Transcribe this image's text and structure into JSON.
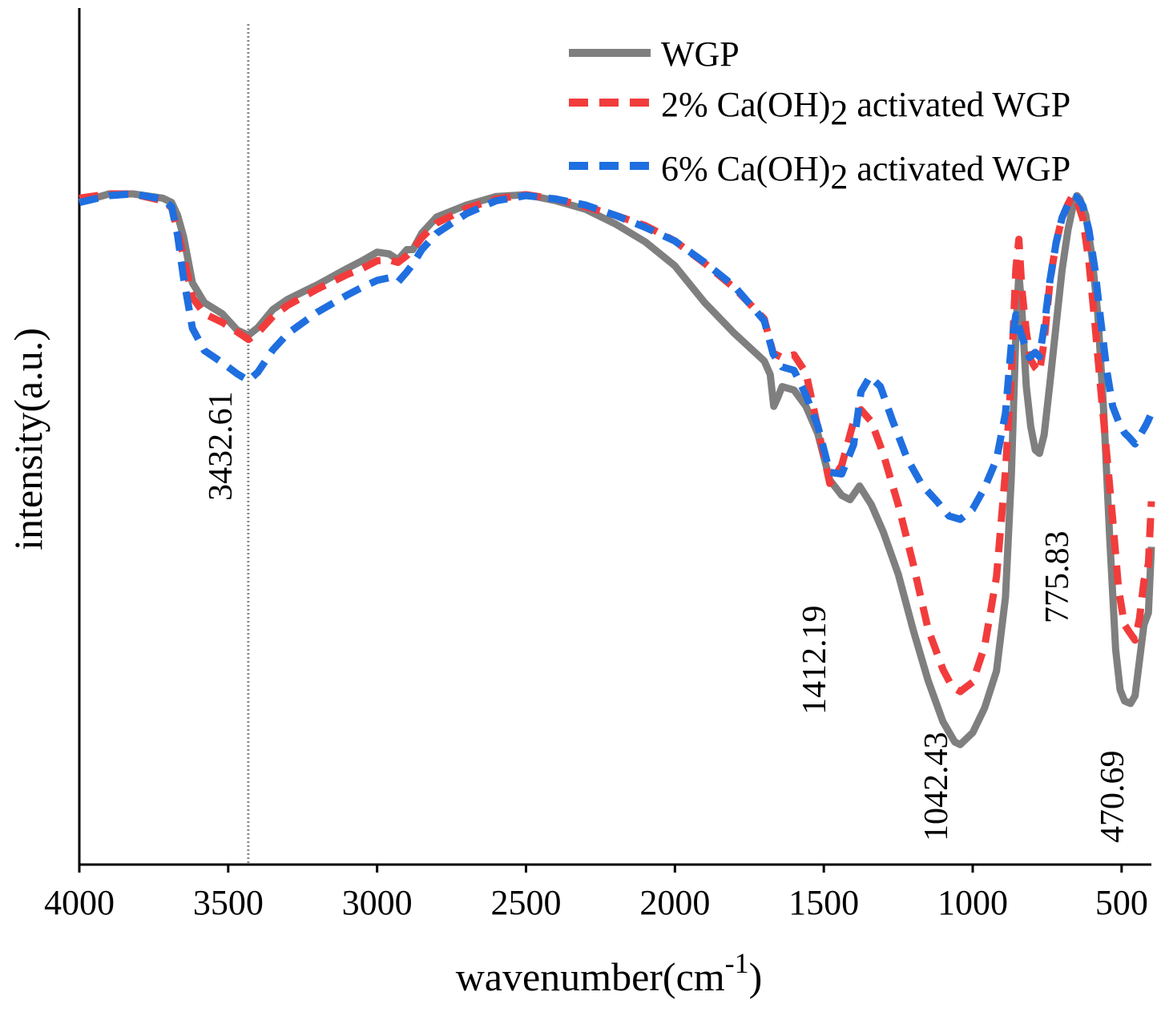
{
  "chart_data": {
    "type": "line",
    "title": "",
    "xlabel": "wavenumber(cm",
    "xlabel_sup": "-1",
    "xlabel_close": ")",
    "ylabel": "intensity(a.u.)",
    "xlim": [
      4000,
      400
    ],
    "x_reversed": true,
    "ylim": [
      0,
      100
    ],
    "grid": false,
    "legend_position": "top-right",
    "x_ticks": [
      {
        "value": 4000,
        "label": "4000"
      },
      {
        "value": 3500,
        "label": "3500"
      },
      {
        "value": 3000,
        "label": "3000"
      },
      {
        "value": 2500,
        "label": "2500"
      },
      {
        "value": 2000,
        "label": "2000"
      },
      {
        "value": 1500,
        "label": "1500"
      },
      {
        "value": 1000,
        "label": "1000"
      },
      {
        "value": 500,
        "label": "500"
      }
    ],
    "reference_line": {
      "x": 3432.61,
      "style": "dotted",
      "color": "#888888"
    },
    "series": [
      {
        "name": "WGP",
        "legend_label": "WGP",
        "legend_parts": [
          "WGP"
        ],
        "color": "#7f7f7f",
        "dash": "solid",
        "points": [
          [
            4000,
            77.3
          ],
          [
            3900,
            78.3
          ],
          [
            3820,
            78.3
          ],
          [
            3720,
            77.8
          ],
          [
            3690,
            77.3
          ],
          [
            3670,
            75.8
          ],
          [
            3650,
            73.3
          ],
          [
            3620,
            67.9
          ],
          [
            3580,
            65.6
          ],
          [
            3520,
            64.3
          ],
          [
            3470,
            62.4
          ],
          [
            3432,
            61.8
          ],
          [
            3400,
            62.7
          ],
          [
            3350,
            64.8
          ],
          [
            3300,
            66.0
          ],
          [
            3200,
            67.7
          ],
          [
            3100,
            69.6
          ],
          [
            3050,
            70.5
          ],
          [
            3000,
            71.5
          ],
          [
            2960,
            71.3
          ],
          [
            2930,
            70.6
          ],
          [
            2900,
            71.8
          ],
          [
            2880,
            71.8
          ],
          [
            2850,
            73.7
          ],
          [
            2800,
            75.6
          ],
          [
            2700,
            77.0
          ],
          [
            2600,
            78.0
          ],
          [
            2500,
            78.2
          ],
          [
            2400,
            77.5
          ],
          [
            2300,
            76.5
          ],
          [
            2200,
            74.8
          ],
          [
            2100,
            72.7
          ],
          [
            2000,
            69.9
          ],
          [
            1900,
            65.6
          ],
          [
            1800,
            62.0
          ],
          [
            1700,
            58.8
          ],
          [
            1680,
            57.2
          ],
          [
            1668,
            53.5
          ],
          [
            1655,
            54.5
          ],
          [
            1640,
            55.8
          ],
          [
            1600,
            55.4
          ],
          [
            1560,
            53.5
          ],
          [
            1520,
            50.3
          ],
          [
            1480,
            44.9
          ],
          [
            1440,
            43.1
          ],
          [
            1412,
            42.6
          ],
          [
            1380,
            44.2
          ],
          [
            1340,
            42.0
          ],
          [
            1300,
            38.8
          ],
          [
            1250,
            33.9
          ],
          [
            1200,
            27.4
          ],
          [
            1150,
            21.5
          ],
          [
            1100,
            16.7
          ],
          [
            1060,
            14.3
          ],
          [
            1042,
            14.0
          ],
          [
            1000,
            15.4
          ],
          [
            960,
            18.3
          ],
          [
            920,
            22.6
          ],
          [
            890,
            31.2
          ],
          [
            870,
            45.6
          ],
          [
            855,
            62.1
          ],
          [
            845,
            69.0
          ],
          [
            835,
            64.8
          ],
          [
            820,
            55.8
          ],
          [
            805,
            51.1
          ],
          [
            790,
            48.4
          ],
          [
            776,
            48.0
          ],
          [
            760,
            50.2
          ],
          [
            740,
            56.4
          ],
          [
            720,
            63.0
          ],
          [
            700,
            69.4
          ],
          [
            680,
            74.1
          ],
          [
            660,
            77.4
          ],
          [
            650,
            78.1
          ],
          [
            640,
            77.7
          ],
          [
            620,
            75.8
          ],
          [
            600,
            71.1
          ],
          [
            580,
            64.3
          ],
          [
            560,
            52.9
          ],
          [
            540,
            38.1
          ],
          [
            520,
            25.1
          ],
          [
            505,
            20.4
          ],
          [
            490,
            19.1
          ],
          [
            470,
            18.8
          ],
          [
            455,
            19.7
          ],
          [
            440,
            23.8
          ],
          [
            425,
            28.0
          ],
          [
            410,
            29.4
          ],
          [
            400,
            37.1
          ]
        ]
      },
      {
        "name": "2% Ca(OH)2 activated WGP",
        "legend_label": "2% Ca(OH)2 activated WGP",
        "legend_parts": [
          "2% Ca(OH)",
          "2",
          " activated WGP"
        ],
        "color": "#f23c3c",
        "dash": "24,14",
        "points": [
          [
            4000,
            77.8
          ],
          [
            3900,
            78.3
          ],
          [
            3820,
            78.3
          ],
          [
            3720,
            77.5
          ],
          [
            3690,
            76.7
          ],
          [
            3670,
            74.0
          ],
          [
            3650,
            71.0
          ],
          [
            3620,
            66.2
          ],
          [
            3580,
            64.3
          ],
          [
            3520,
            63.3
          ],
          [
            3470,
            62.2
          ],
          [
            3432,
            61.3
          ],
          [
            3400,
            62.1
          ],
          [
            3350,
            64.0
          ],
          [
            3300,
            65.3
          ],
          [
            3200,
            67.2
          ],
          [
            3100,
            68.9
          ],
          [
            3050,
            69.6
          ],
          [
            3000,
            70.5
          ],
          [
            2960,
            70.6
          ],
          [
            2930,
            70.3
          ],
          [
            2900,
            71.1
          ],
          [
            2880,
            71.8
          ],
          [
            2850,
            73.2
          ],
          [
            2800,
            74.9
          ],
          [
            2700,
            76.6
          ],
          [
            2600,
            77.7
          ],
          [
            2500,
            78.2
          ],
          [
            2400,
            77.7
          ],
          [
            2300,
            76.8
          ],
          [
            2200,
            75.8
          ],
          [
            2100,
            74.6
          ],
          [
            2000,
            72.8
          ],
          [
            1900,
            70.2
          ],
          [
            1800,
            67.3
          ],
          [
            1700,
            63.7
          ],
          [
            1670,
            59.7
          ],
          [
            1640,
            59.2
          ],
          [
            1600,
            59.5
          ],
          [
            1560,
            57.4
          ],
          [
            1520,
            51.0
          ],
          [
            1480,
            44.5
          ],
          [
            1440,
            46.6
          ],
          [
            1400,
            51.7
          ],
          [
            1375,
            53.1
          ],
          [
            1340,
            51.7
          ],
          [
            1300,
            47.9
          ],
          [
            1250,
            42.0
          ],
          [
            1200,
            35.1
          ],
          [
            1150,
            27.5
          ],
          [
            1100,
            22.8
          ],
          [
            1070,
            20.8
          ],
          [
            1042,
            20.2
          ],
          [
            1000,
            21.3
          ],
          [
            960,
            25.5
          ],
          [
            920,
            33.6
          ],
          [
            890,
            45.9
          ],
          [
            870,
            57.4
          ],
          [
            855,
            69.6
          ],
          [
            845,
            73.0
          ],
          [
            835,
            67.2
          ],
          [
            820,
            62.2
          ],
          [
            805,
            58.9
          ],
          [
            790,
            58.0
          ],
          [
            776,
            57.5
          ],
          [
            760,
            61.1
          ],
          [
            740,
            68.2
          ],
          [
            720,
            72.6
          ],
          [
            700,
            75.5
          ],
          [
            680,
            77.1
          ],
          [
            665,
            78.1
          ],
          [
            650,
            77.5
          ],
          [
            630,
            75.4
          ],
          [
            610,
            70.4
          ],
          [
            590,
            63.3
          ],
          [
            570,
            55.5
          ],
          [
            550,
            47.9
          ],
          [
            530,
            40.3
          ],
          [
            510,
            32.1
          ],
          [
            490,
            28.0
          ],
          [
            475,
            27.2
          ],
          [
            455,
            26.2
          ],
          [
            440,
            28.7
          ],
          [
            425,
            33.1
          ],
          [
            410,
            35.1
          ],
          [
            400,
            42.4
          ]
        ]
      },
      {
        "name": "6% Ca(OH)2 activated WGP",
        "legend_label": "6% Ca(OH)2 activated WGP",
        "legend_parts": [
          "6% Ca(OH)",
          "2",
          " activated WGP"
        ],
        "color": "#1f6fe0",
        "dash": "24,14",
        "points": [
          [
            4000,
            77.3
          ],
          [
            3900,
            78.1
          ],
          [
            3820,
            78.3
          ],
          [
            3720,
            77.7
          ],
          [
            3690,
            76.8
          ],
          [
            3670,
            73.5
          ],
          [
            3650,
            68.5
          ],
          [
            3620,
            62.6
          ],
          [
            3580,
            60.0
          ],
          [
            3520,
            58.6
          ],
          [
            3470,
            57.3
          ],
          [
            3432,
            56.5
          ],
          [
            3400,
            57.5
          ],
          [
            3350,
            60.1
          ],
          [
            3300,
            62.0
          ],
          [
            3200,
            64.5
          ],
          [
            3100,
            66.5
          ],
          [
            3050,
            67.4
          ],
          [
            3000,
            68.2
          ],
          [
            2960,
            68.5
          ],
          [
            2930,
            68.0
          ],
          [
            2900,
            69.2
          ],
          [
            2880,
            70.1
          ],
          [
            2850,
            71.8
          ],
          [
            2800,
            73.7
          ],
          [
            2700,
            76.0
          ],
          [
            2600,
            77.5
          ],
          [
            2500,
            78.1
          ],
          [
            2400,
            77.7
          ],
          [
            2300,
            77.0
          ],
          [
            2200,
            75.8
          ],
          [
            2100,
            74.4
          ],
          [
            2000,
            72.8
          ],
          [
            1900,
            70.3
          ],
          [
            1800,
            67.5
          ],
          [
            1700,
            63.5
          ],
          [
            1670,
            59.6
          ],
          [
            1640,
            58.1
          ],
          [
            1600,
            57.7
          ],
          [
            1560,
            54.8
          ],
          [
            1520,
            51.2
          ],
          [
            1480,
            45.8
          ],
          [
            1440,
            45.6
          ],
          [
            1400,
            49.0
          ],
          [
            1375,
            55.2
          ],
          [
            1345,
            57.0
          ],
          [
            1310,
            55.8
          ],
          [
            1270,
            51.9
          ],
          [
            1220,
            47.4
          ],
          [
            1170,
            44.3
          ],
          [
            1120,
            42.4
          ],
          [
            1080,
            40.7
          ],
          [
            1042,
            40.3
          ],
          [
            1000,
            41.5
          ],
          [
            960,
            44.0
          ],
          [
            920,
            47.3
          ],
          [
            890,
            52.7
          ],
          [
            870,
            60.8
          ],
          [
            855,
            64.2
          ],
          [
            840,
            62.2
          ],
          [
            825,
            60.7
          ],
          [
            810,
            59.2
          ],
          [
            790,
            59.8
          ],
          [
            776,
            59.3
          ],
          [
            760,
            62.8
          ],
          [
            740,
            68.3
          ],
          [
            720,
            72.6
          ],
          [
            700,
            75.5
          ],
          [
            680,
            77.1
          ],
          [
            665,
            78.0
          ],
          [
            650,
            77.9
          ],
          [
            630,
            76.9
          ],
          [
            610,
            74.1
          ],
          [
            590,
            69.6
          ],
          [
            570,
            63.5
          ],
          [
            550,
            57.7
          ],
          [
            530,
            53.5
          ],
          [
            510,
            51.7
          ],
          [
            490,
            50.4
          ],
          [
            475,
            49.9
          ],
          [
            455,
            49.1
          ],
          [
            440,
            50.0
          ],
          [
            420,
            51.2
          ],
          [
            410,
            51.9
          ],
          [
            400,
            52.7
          ]
        ]
      }
    ],
    "annotations": [
      {
        "label": "3432.61",
        "x": 3432.61
      },
      {
        "label": "1412.19",
        "x": 1412.19
      },
      {
        "label": "1042.43",
        "x": 1042.43
      },
      {
        "label": "775.83",
        "x": 775.83
      },
      {
        "label": "470.69",
        "x": 470.69
      }
    ]
  }
}
